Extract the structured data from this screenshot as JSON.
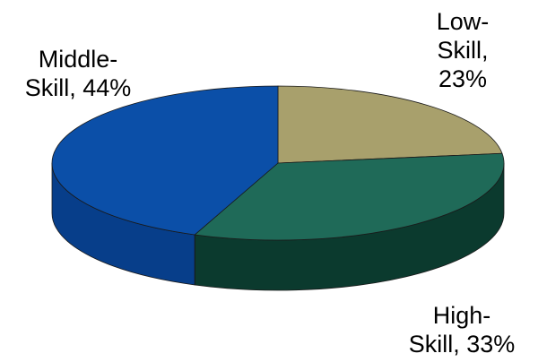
{
  "chart_data": {
    "type": "pie",
    "three_d": true,
    "labels_shown": "outside",
    "slices": [
      {
        "category": "Low-",
        "category_line2": "Skill,",
        "value": 23,
        "value_label": "23%",
        "color": "#A8A06C",
        "side_color": "#6E6A3E"
      },
      {
        "category": "High-",
        "category_line2": "Skill, 33%",
        "value": 33,
        "value_label": "",
        "color": "#1F6A58",
        "side_color": "#0B3A2E"
      },
      {
        "category": "Middle-",
        "category_line2": "Skill, 44%",
        "value": 44,
        "value_label": "",
        "color": "#0B4FA8",
        "side_color": "#073E8A"
      }
    ]
  }
}
